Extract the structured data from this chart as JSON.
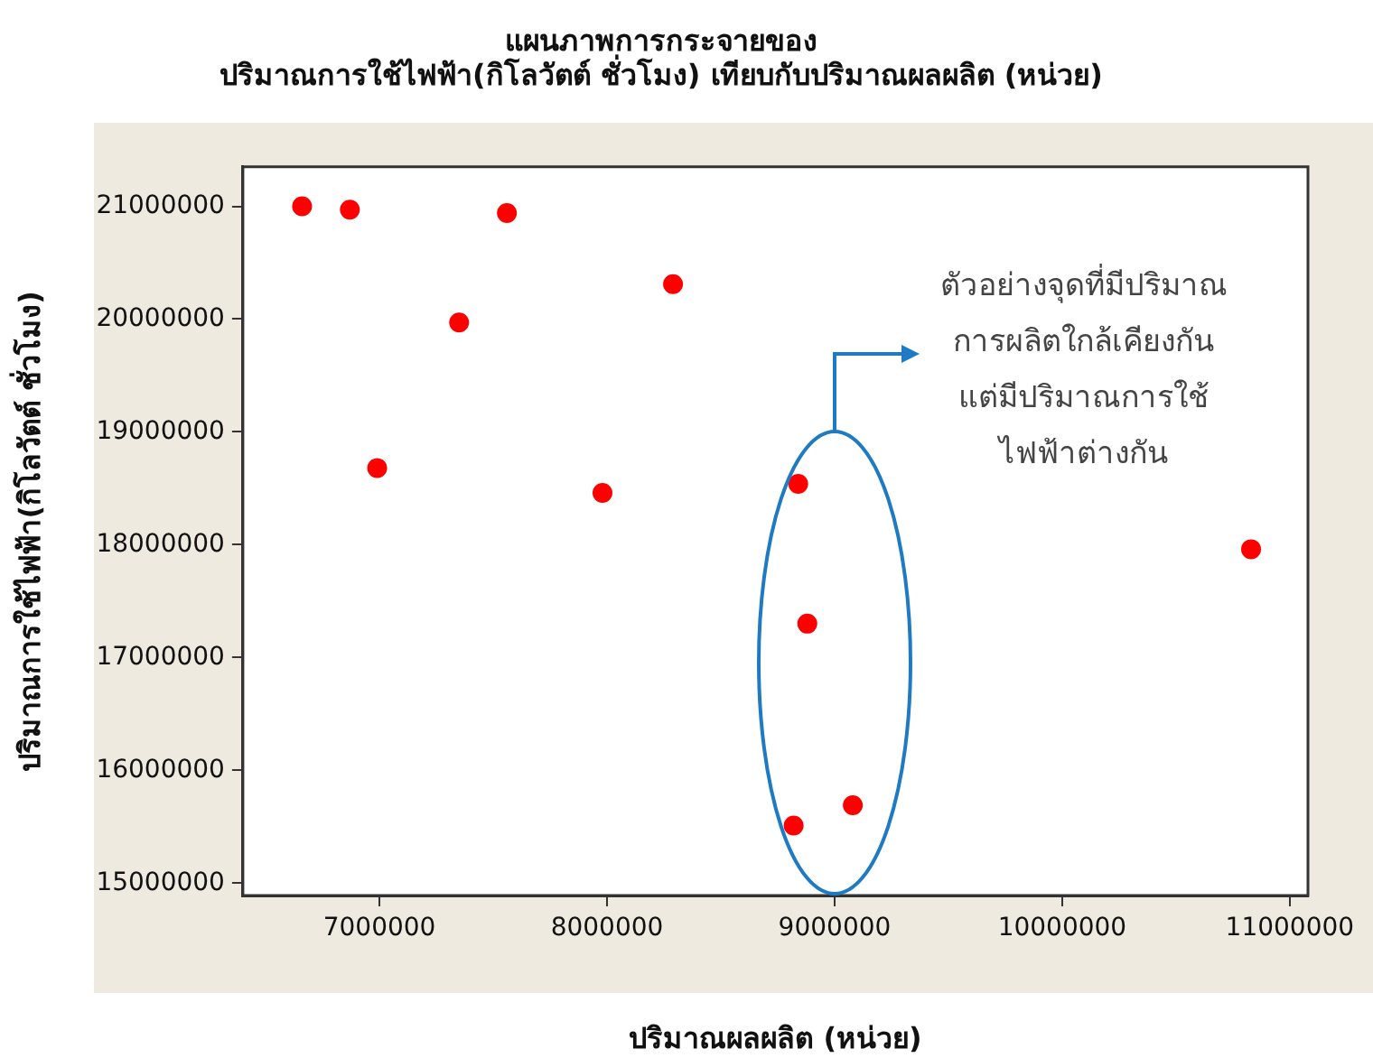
{
  "chart_data": {
    "type": "scatter",
    "title": "แผนภาพการกระจายของ\nปริมาณการใช้ไฟฟ้า(กิโลวัตต์ ชั่วโมง) เทียบกับปริมาณผลผลิต (หน่วย)",
    "xlabel": "ปริมาณผลผลิต (หน่วย)",
    "ylabel": "ปริมาณการใช้ไฟฟ้า(กิโลวัตต์ ชั่วโมง)",
    "annotations": [
      "ตัวอย่างจุดที่มีปริมาณ\nการผลิตใกล้เคียงกัน\nแต่มีปริมาณการใช้\nไฟฟ้าต่างกัน"
    ],
    "x": [
      6660000,
      6870000,
      7560000,
      7350000,
      8290000,
      6990000,
      7980000,
      8840000,
      8880000,
      8820000,
      9080000,
      10830000
    ],
    "series": [
      {
        "color": "#ff0000",
        "values": [
          21000000,
          20970000,
          20940000,
          19970000,
          20310000,
          18680000,
          18460000,
          18540000,
          17300000,
          15510000,
          15690000,
          17960000
        ]
      }
    ],
    "xlim": [
      6400000,
      11080000
    ],
    "xticks": [
      7000000,
      8000000,
      9000000,
      10000000,
      11000000
    ],
    "ylim": [
      14890000,
      21350000
    ],
    "yticks": [
      15000000,
      16000000,
      17000000,
      18000000,
      19000000,
      20000000,
      21000000
    ],
    "grid": false,
    "legend": false,
    "marker": "circle"
  }
}
